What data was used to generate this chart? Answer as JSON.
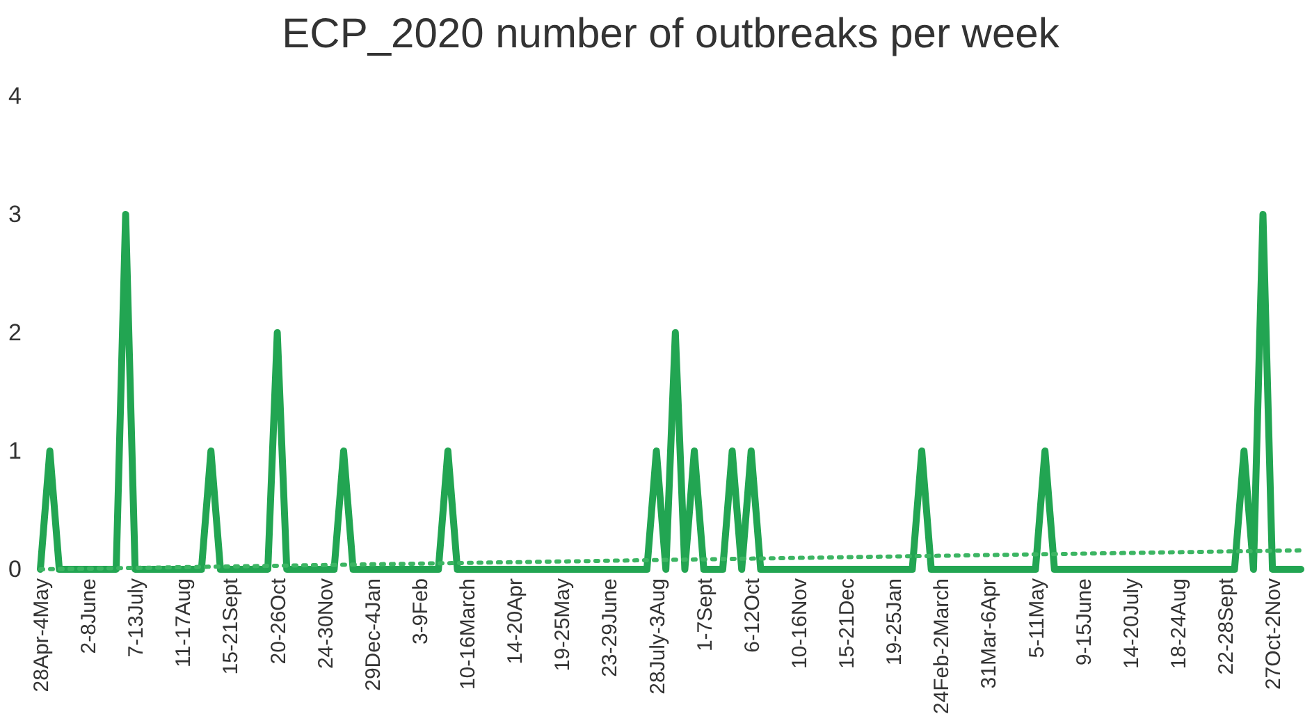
{
  "chart_data": {
    "type": "line",
    "title": "ECP_2020 number of outbreaks per week",
    "categories": [
      "28Apr-4May",
      null,
      null,
      null,
      null,
      "2-8June",
      null,
      null,
      null,
      null,
      "7-13July",
      null,
      null,
      null,
      null,
      "11-17Aug",
      null,
      null,
      null,
      null,
      "15-21Sept",
      null,
      null,
      null,
      null,
      "20-26Oct",
      null,
      null,
      null,
      null,
      "24-30Nov",
      null,
      null,
      null,
      null,
      "29Dec-4Jan",
      null,
      null,
      null,
      null,
      "3-9Feb",
      null,
      null,
      null,
      null,
      "10-16March",
      null,
      null,
      null,
      null,
      "14-20Apr",
      null,
      null,
      null,
      null,
      "19-25May",
      null,
      null,
      null,
      null,
      "23-29June",
      null,
      null,
      null,
      null,
      "28July-3Aug",
      null,
      null,
      null,
      null,
      "1-7Sept",
      null,
      null,
      null,
      null,
      "6-12Oct",
      null,
      null,
      null,
      null,
      "10-16Nov",
      null,
      null,
      null,
      null,
      "15-21Dec",
      null,
      null,
      null,
      null,
      "19-25Jan",
      null,
      null,
      null,
      null,
      "24Feb-2March",
      null,
      null,
      null,
      null,
      "31Mar-6Apr",
      null,
      null,
      null,
      null,
      "5-11May",
      null,
      null,
      null,
      null,
      "9-15June",
      null,
      null,
      null,
      null,
      "14-20July",
      null,
      null,
      null,
      null,
      "18-24Aug",
      null,
      null,
      null,
      null,
      "22-28Sept",
      null,
      null,
      null,
      null,
      "27Oct-2Nov",
      null,
      null,
      null
    ],
    "series": [
      {
        "line_style": "solid",
        "color": "#22a552",
        "values": [
          0,
          1,
          0,
          0,
          0,
          0,
          0,
          0,
          0,
          3,
          0,
          0,
          0,
          0,
          0,
          0,
          0,
          0,
          1,
          0,
          0,
          0,
          0,
          0,
          0,
          2,
          0,
          0,
          0,
          0,
          0,
          0,
          1,
          0,
          0,
          0,
          0,
          0,
          0,
          0,
          0,
          0,
          0,
          1,
          0,
          0,
          0,
          0,
          0,
          0,
          0,
          0,
          0,
          0,
          0,
          0,
          0,
          0,
          0,
          0,
          0,
          0,
          0,
          0,
          0,
          1,
          0,
          2,
          0,
          1,
          0,
          0,
          0,
          1,
          0,
          1,
          0,
          0,
          0,
          0,
          0,
          0,
          0,
          0,
          0,
          0,
          0,
          0,
          0,
          0,
          0,
          0,
          0,
          1,
          0,
          0,
          0,
          0,
          0,
          0,
          0,
          0,
          0,
          0,
          0,
          0,
          1,
          0,
          0,
          0,
          0,
          0,
          0,
          0,
          0,
          0,
          0,
          0,
          0,
          0,
          0,
          0,
          0,
          0,
          0,
          0,
          0,
          1,
          0,
          3,
          0,
          0,
          0,
          0
        ]
      },
      {
        "type": "line",
        "line_style": "dotted",
        "color": "#3cb563",
        "values": [
          0.0,
          null,
          null,
          null,
          null,
          null,
          null,
          null,
          null,
          null,
          null,
          null,
          null,
          null,
          null,
          null,
          null,
          null,
          null,
          null,
          null,
          null,
          null,
          null,
          null,
          null,
          null,
          null,
          null,
          null,
          null,
          null,
          null,
          null,
          null,
          null,
          null,
          null,
          null,
          null,
          null,
          null,
          null,
          null,
          null,
          null,
          null,
          null,
          null,
          null,
          null,
          null,
          null,
          null,
          null,
          null,
          null,
          null,
          null,
          null,
          null,
          null,
          null,
          null,
          null,
          null,
          null,
          null,
          null,
          null,
          null,
          null,
          null,
          null,
          null,
          null,
          null,
          null,
          null,
          null,
          null,
          null,
          null,
          null,
          null,
          null,
          null,
          null,
          null,
          null,
          null,
          null,
          null,
          null,
          null,
          null,
          null,
          null,
          null,
          null,
          null,
          null,
          null,
          null,
          null,
          null,
          null,
          null,
          null,
          null,
          null,
          null,
          null,
          null,
          null,
          null,
          null,
          null,
          null,
          null,
          null,
          null,
          null,
          null,
          null,
          null,
          null,
          null,
          null,
          null,
          null,
          null,
          null,
          0.16
        ]
      }
    ],
    "ylim": [
      0,
      4
    ],
    "yticks": [
      0,
      1,
      2,
      3,
      4
    ],
    "grid": false,
    "marker": "none"
  }
}
